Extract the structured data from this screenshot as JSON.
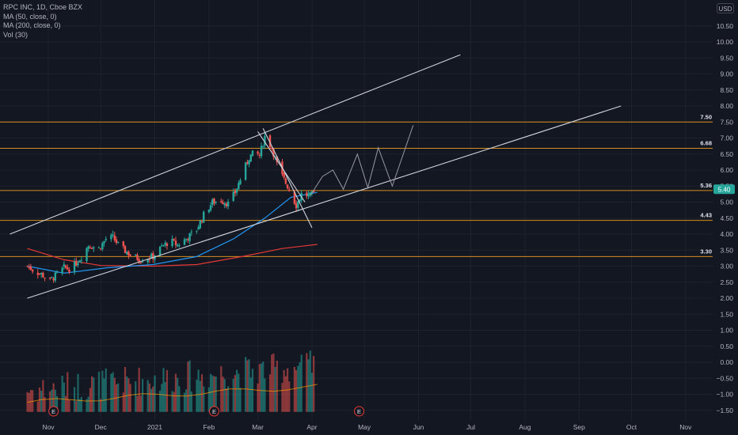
{
  "legend": {
    "symbol_line": "RPC INC, 1D, Cboe BZX",
    "ma50": "MA (50, close, 0)",
    "ma200": "MA (200, close, 0)",
    "vol": "Vol (30)"
  },
  "currency": "USD",
  "colors": {
    "background": "#131722",
    "grid": "#1e222d",
    "up": "#26a69a",
    "down": "#ef5350",
    "ma50": "#2196f3",
    "ma200": "#e53935",
    "level_line": "#f7a21b",
    "trend_line": "#d1d4dc",
    "price_text": "#b2b5be",
    "last_price_bg": "#26a69a"
  },
  "chart_data": {
    "type": "candlestick",
    "title": "RPC INC, 1D, Cboe BZX",
    "yaxis_ticks": [
      "10.50",
      "10.00",
      "9.50",
      "9.00",
      "8.50",
      "8.00",
      "7.50",
      "7.00",
      "6.50",
      "6.00",
      "5.50",
      "5.00",
      "4.50",
      "4.00",
      "3.50",
      "3.00",
      "2.50",
      "2.00",
      "1.50",
      "1.00",
      "0.50",
      "0.00",
      "−0.50",
      "−1.00",
      "−1.50"
    ],
    "ylim": [
      -1.75,
      10.85
    ],
    "xaxis_ticks": [
      "Nov",
      "Dec",
      "2021",
      "Feb",
      "Mar",
      "Apr",
      "May",
      "Jun",
      "Jul",
      "Aug",
      "Sep",
      "Oct",
      "Nov"
    ],
    "horizontal_levels": [
      {
        "label": "7.50",
        "price": 7.5
      },
      {
        "label": "6.68",
        "price": 6.68
      },
      {
        "label": "5.36",
        "price": 5.36
      },
      {
        "label": "4.43",
        "price": 4.43
      },
      {
        "label": "3.30",
        "price": 3.3
      }
    ],
    "last_price": "5.40",
    "earnings_markers": [
      "E",
      "E",
      "E"
    ],
    "price_path": [
      [
        "2020-10-20",
        3.0
      ],
      [
        "2020-10-24",
        2.85
      ],
      [
        "2020-10-28",
        2.75
      ],
      [
        "2020-11-02",
        2.55
      ],
      [
        "2020-11-05",
        2.7
      ],
      [
        "2020-11-10",
        2.95
      ],
      [
        "2020-11-14",
        2.9
      ],
      [
        "2020-11-20",
        3.3
      ],
      [
        "2020-11-24",
        3.65
      ],
      [
        "2020-11-30",
        3.55
      ],
      [
        "2020-12-04",
        3.85
      ],
      [
        "2020-12-08",
        3.9
      ],
      [
        "2020-12-12",
        3.6
      ],
      [
        "2020-12-18",
        3.35
      ],
      [
        "2020-12-24",
        3.2
      ],
      [
        "2020-12-31",
        3.3
      ],
      [
        "2021-01-05",
        3.6
      ],
      [
        "2021-01-10",
        3.8
      ],
      [
        "2021-01-14",
        3.65
      ],
      [
        "2021-01-20",
        3.9
      ],
      [
        "2021-01-25",
        4.15
      ],
      [
        "2021-01-29",
        4.6
      ],
      [
        "2021-02-03",
        5.0
      ],
      [
        "2021-02-08",
        5.05
      ],
      [
        "2021-02-12",
        4.95
      ],
      [
        "2021-02-16",
        5.3
      ],
      [
        "2021-02-20",
        5.85
      ],
      [
        "2021-02-24",
        6.4
      ],
      [
        "2021-02-27",
        6.55
      ],
      [
        "2021-03-02",
        6.45
      ],
      [
        "2021-03-05",
        7.05
      ],
      [
        "2021-03-09",
        6.7
      ],
      [
        "2021-03-13",
        6.0
      ],
      [
        "2021-03-18",
        5.5
      ],
      [
        "2021-03-23",
        4.9
      ],
      [
        "2021-03-26",
        5.25
      ],
      [
        "2021-03-31",
        5.2
      ],
      [
        "2021-04-04",
        5.35
      ]
    ],
    "projection_path": [
      [
        "2021-03-31",
        5.2
      ],
      [
        "2021-04-07",
        5.8
      ],
      [
        "2021-04-13",
        6.0
      ],
      [
        "2021-04-19",
        5.4
      ],
      [
        "2021-04-27",
        6.5
      ],
      [
        "2021-05-03",
        5.45
      ],
      [
        "2021-05-09",
        6.7
      ],
      [
        "2021-05-17",
        5.5
      ],
      [
        "2021-05-23",
        6.45
      ],
      [
        "2021-05-29",
        7.4
      ]
    ],
    "ma50": [
      [
        "2020-10-20",
        3.0
      ],
      [
        "2020-11-10",
        2.78
      ],
      [
        "2020-12-05",
        2.95
      ],
      [
        "2020-12-31",
        3.05
      ],
      [
        "2021-01-25",
        3.3
      ],
      [
        "2021-02-15",
        3.85
      ],
      [
        "2021-03-05",
        4.5
      ],
      [
        "2021-03-20",
        5.15
      ],
      [
        "2021-04-04",
        5.3
      ]
    ],
    "ma200": [
      [
        "2020-10-20",
        3.55
      ],
      [
        "2020-11-10",
        3.2
      ],
      [
        "2020-12-01",
        3.02
      ],
      [
        "2020-12-31",
        3.0
      ],
      [
        "2021-01-25",
        3.05
      ],
      [
        "2021-02-20",
        3.3
      ],
      [
        "2021-03-15",
        3.55
      ],
      [
        "2021-04-04",
        3.68
      ]
    ],
    "trend_lines": [
      {
        "from": [
          "2020-10-10",
          4.0
        ],
        "to": [
          "2021-06-25",
          9.6
        ]
      },
      {
        "from": [
          "2020-10-20",
          2.0
        ],
        "to": [
          "2021-09-25",
          8.0
        ]
      },
      {
        "from": [
          "2021-03-04",
          7.3
        ],
        "to": [
          "2021-04-01",
          4.2
        ]
      },
      {
        "from": [
          "2021-03-01",
          7.2
        ],
        "to": [
          "2021-03-28",
          5.0
        ]
      }
    ],
    "volume_spike": [
      "2021-03-28",
      1.5
    ]
  }
}
